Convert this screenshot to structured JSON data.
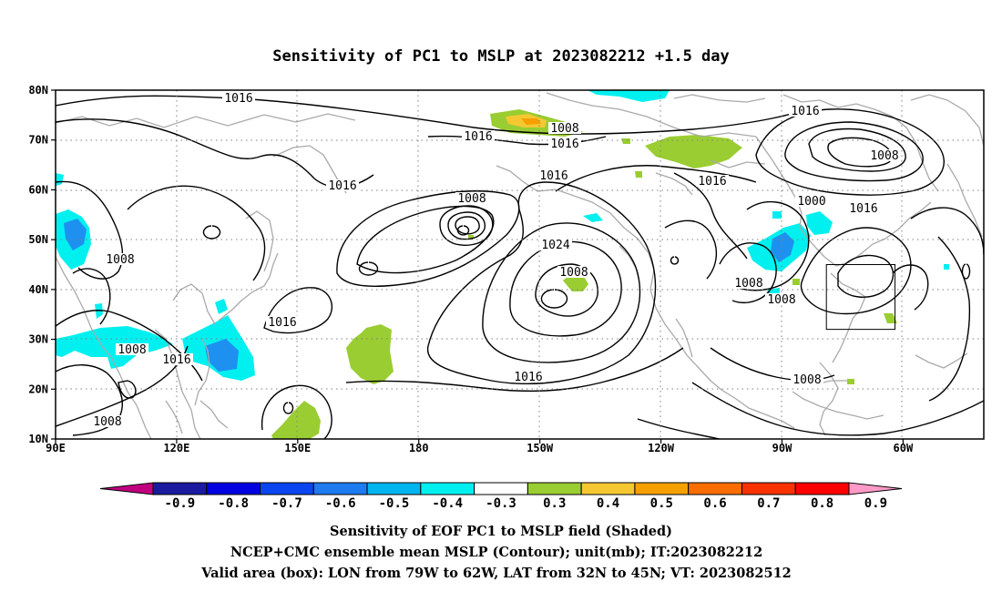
{
  "title": "Sensitivity of PC1 to MSLP at 2023082212 +1.5 day",
  "lat_ticks": [
    "80N",
    "70N",
    "60N",
    "50N",
    "40N",
    "30N",
    "20N",
    "10N"
  ],
  "lon_ticks": [
    "90E",
    "120E",
    "150E",
    "180",
    "150W",
    "120W",
    "90W",
    "60W"
  ],
  "contour_labels": [
    "1016",
    "1016",
    "1016",
    "1008",
    "1016",
    "1008",
    "1016",
    "1016",
    "1008",
    "1000",
    "1016",
    "1008",
    "1016",
    "1016",
    "1024",
    "1008",
    "1016",
    "1008",
    "1008",
    "1016",
    "1008",
    "1008",
    "1008"
  ],
  "colorbar": {
    "labels": [
      "-0.9",
      "-0.8",
      "-0.7",
      "-0.6",
      "-0.5",
      "-0.4",
      "-0.3",
      "0.3",
      "0.4",
      "0.5",
      "0.6",
      "0.7",
      "0.8",
      "0.9"
    ],
    "colors": [
      "#c0007f",
      "#1a1aa0",
      "#0000e0",
      "#0a46f0",
      "#1e7bf0",
      "#00b4f0",
      "#00f0f0",
      "#ffffff",
      "#9acd32",
      "#f5c832",
      "#f5a000",
      "#fa6e00",
      "#fa3200",
      "#ff0000",
      "#ff9ac8"
    ]
  },
  "box": {
    "lon": [
      -79,
      -62
    ],
    "lat": [
      32,
      45
    ]
  },
  "caption": {
    "line1": "Sensitivity of EOF PC1 to MSLP field (Shaded)",
    "line2": "NCEP+CMC ensemble mean MSLP (Contour); unit(mb); IT:2023082212",
    "line3": "Valid area (box): LON from 79W to 62W, LAT from 32N to 45N; VT: 2023082512"
  }
}
